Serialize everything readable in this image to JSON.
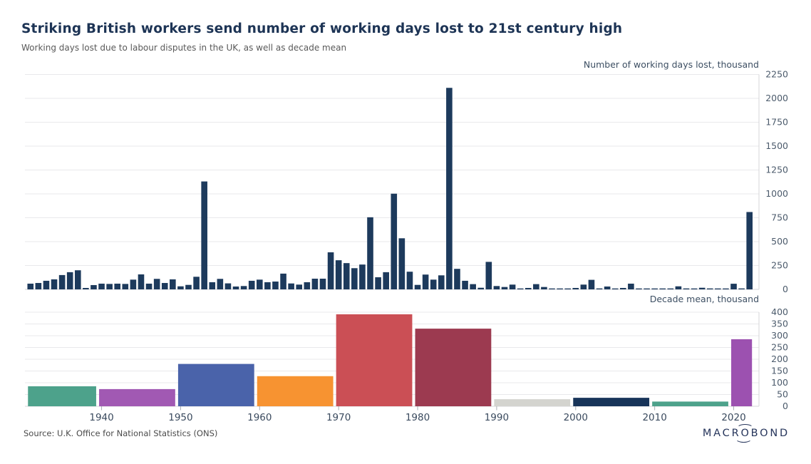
{
  "header": {
    "title": "Striking British workers send number of working days lost to 21st century high",
    "subtitle": "Working days lost due to labour disputes in the UK, as well as decade mean"
  },
  "footer": {
    "source": "Source: U.K. Office for National Statistics (ONS)",
    "logo": "MACROBOND"
  },
  "colors": {
    "background": "#ffffff",
    "title_text": "#1d3455",
    "subtitle_text": "#595959",
    "bar_navy": "#1d3a5c",
    "gridline": "#e9e9eb",
    "axis_line": "#d5d5d8",
    "tick_mark": "#a8aeb4",
    "tick_label": "#4c5b6c",
    "axis_title": "#3d4f63",
    "x_label": "#3a4a5e"
  },
  "chart_data": [
    {
      "type": "bar",
      "panel": "yearly-working-days-lost",
      "ylabel": "Number of working days lost, thousand",
      "x_start": 1931,
      "x_end": 2022,
      "x_axis_range": [
        1930.3,
        2023.2
      ],
      "ylim": [
        0,
        2250
      ],
      "yticks": [
        0,
        250,
        500,
        750,
        1000,
        1250,
        1500,
        1750,
        2000,
        2250
      ],
      "grid": true,
      "legend": "none",
      "bar_color": "#1d3a5c",
      "values": [
        60,
        67,
        90,
        105,
        150,
        180,
        200,
        15,
        45,
        60,
        57,
        60,
        57,
        102,
        157,
        60,
        110,
        67,
        105,
        32,
        47,
        132,
        1130,
        75,
        110,
        63,
        30,
        35,
        90,
        102,
        75,
        82,
        165,
        62,
        50,
        75,
        112,
        112,
        388,
        305,
        275,
        222,
        260,
        755,
        127,
        180,
        1002,
        535,
        185,
        47,
        155,
        102,
        147,
        2110,
        215,
        90,
        55,
        17,
        288,
        35,
        25,
        50,
        2,
        15,
        55,
        25,
        5,
        8,
        5,
        15,
        50,
        100,
        10,
        30,
        3,
        15,
        60,
        5,
        2,
        4,
        2,
        2,
        32,
        10,
        7,
        17,
        10,
        2,
        5,
        59,
        10,
        810
      ]
    },
    {
      "type": "bar",
      "panel": "decade-mean",
      "ylabel": "Decade mean, thousand",
      "ylim": [
        0,
        400
      ],
      "yticks": [
        0,
        50,
        100,
        150,
        200,
        250,
        300,
        350,
        400
      ],
      "xticks": [
        1940,
        1950,
        1960,
        1970,
        1980,
        1990,
        2000,
        2010,
        2020
      ],
      "grid": true,
      "legend": "none",
      "categories": [
        "1930s",
        "1940s",
        "1950s",
        "1960s",
        "1970s",
        "1980s",
        "1990s",
        "2000s",
        "2010s",
        "2020s"
      ],
      "spans": [
        [
          1931,
          1939
        ],
        [
          1940,
          1949
        ],
        [
          1950,
          1959
        ],
        [
          1960,
          1969
        ],
        [
          1970,
          1979
        ],
        [
          1980,
          1989
        ],
        [
          1990,
          1999
        ],
        [
          2000,
          2009
        ],
        [
          2010,
          2019
        ],
        [
          2020,
          2022
        ]
      ],
      "values": [
        85,
        73,
        180,
        128,
        391,
        330,
        30,
        36,
        20,
        285
      ],
      "bar_colors": [
        "#4da28b",
        "#a159b3",
        "#4a63aa",
        "#f79331",
        "#cb4f55",
        "#9c3a50",
        "#d4d4cf",
        "#173459",
        "#4da28b",
        "#9c51b0"
      ]
    }
  ]
}
